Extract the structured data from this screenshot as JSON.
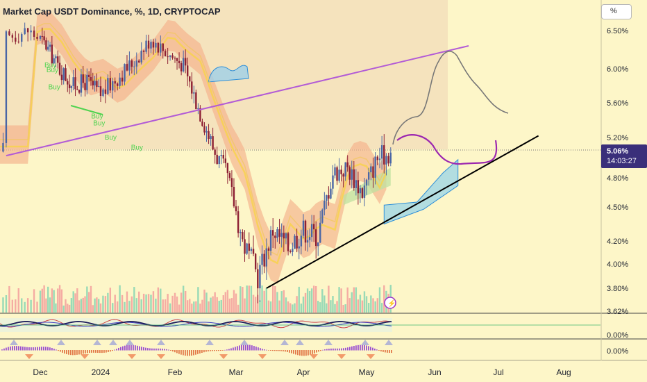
{
  "header": {
    "title": "Market Cap USDT Dominance, %, 1D, CRYPTOCAP",
    "unit_button": "%"
  },
  "chart_data": {
    "type": "candlestick",
    "title": "Market Cap USDT Dominance, %, 1D, CRYPTOCAP",
    "x_axis": {
      "ticks": [
        "Dec",
        "2024",
        "Feb",
        "Mar",
        "Apr",
        "May",
        "Jun",
        "Jul",
        "Aug"
      ]
    },
    "y_axis": {
      "unit": "%",
      "ticks": [
        "6.50%",
        "6.00%",
        "5.60%",
        "5.20%",
        "4.80%",
        "4.50%",
        "4.20%",
        "4.00%",
        "3.80%",
        "3.62%"
      ],
      "range": [
        3.62,
        6.6
      ]
    },
    "current_price": {
      "value": "5.06%",
      "countdown": "14:03:27"
    },
    "signals": [
      {
        "label": "Buy",
        "date": "2023-12-06",
        "price": 6.02
      },
      {
        "label": "Buy",
        "date": "2023-12-07",
        "price": 5.96
      },
      {
        "label": "Buy",
        "date": "2023-12-08",
        "price": 5.76
      },
      {
        "label": "Buy",
        "date": "2023-12-30",
        "price": 5.42
      },
      {
        "label": "Buy",
        "date": "2023-12-31",
        "price": 5.34
      },
      {
        "label": "Buy",
        "date": "2024-01-05",
        "price": 5.18
      },
      {
        "label": "Buy",
        "date": "2024-01-16",
        "price": 5.08
      }
    ],
    "close_series": {
      "dates": [
        "2023-11-20",
        "2023-11-27",
        "2023-12-04",
        "2023-12-11",
        "2023-12-18",
        "2023-12-25",
        "2024-01-01",
        "2024-01-08",
        "2024-01-15",
        "2024-01-22",
        "2024-01-29",
        "2024-02-05",
        "2024-02-12",
        "2024-02-19",
        "2024-02-26",
        "2024-03-04",
        "2024-03-11",
        "2024-03-18",
        "2024-03-25",
        "2024-04-01",
        "2024-04-08",
        "2024-04-15",
        "2024-04-22",
        "2024-04-29",
        "2024-05-06",
        "2024-05-13"
      ],
      "values": [
        6.4,
        6.5,
        6.3,
        6.0,
        5.8,
        5.85,
        5.7,
        5.9,
        6.1,
        6.4,
        6.2,
        6.05,
        5.55,
        5.1,
        4.8,
        4.2,
        3.9,
        4.3,
        4.15,
        4.3,
        4.25,
        4.85,
        4.9,
        4.65,
        5.0,
        5.06
      ]
    },
    "annotations": [
      {
        "type": "trendline",
        "name": "descending resistance",
        "from": [
          "2023-11-20",
          5.02
        ],
        "to": [
          "2024-06-17",
          6.3
        ]
      },
      {
        "type": "trendline",
        "name": "rising support",
        "from": [
          "2024-03-15",
          3.8
        ],
        "to": [
          "2024-07-20",
          5.22
        ]
      },
      {
        "type": "projection",
        "name": "bullish path",
        "color": "#777777"
      },
      {
        "type": "projection",
        "name": "sideways path",
        "color": "#9c27b0"
      }
    ],
    "volume": {
      "panel": "bottom",
      "colors": [
        "#7fd3b1",
        "#f29a9a"
      ]
    },
    "indicators": [
      {
        "name": "oscillator",
        "zero_label": "0.00%"
      },
      {
        "name": "histogram",
        "zero_label": "0.00%"
      }
    ]
  },
  "colors": {
    "background": "#fdf6c8",
    "up": "#4a66a6",
    "down": "#8d1f33",
    "price_tag": "#3a2f7a",
    "resistance": "#b25bd6",
    "support": "#000000",
    "buy": "#4fd34f"
  }
}
